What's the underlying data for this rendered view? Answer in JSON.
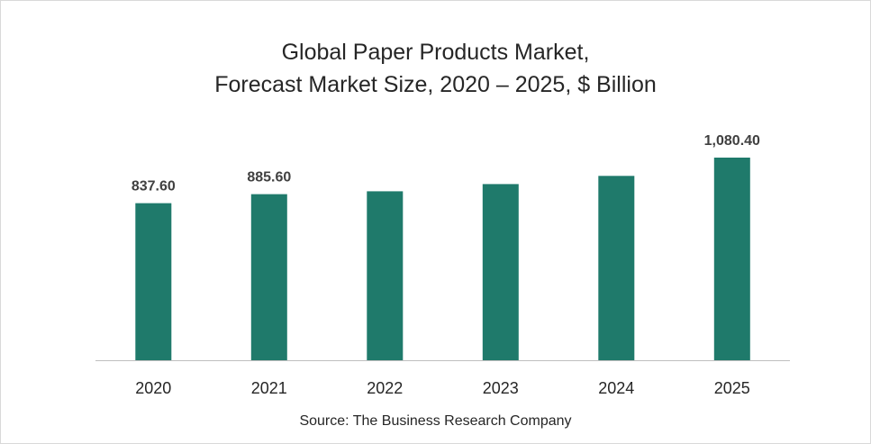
{
  "chart_data": {
    "type": "bar",
    "title_line1": "Global Paper Products Market,",
    "title_line2": "Forecast Market Size, 2020 – 2025, $ Billion",
    "categories": [
      "2020",
      "2021",
      "2022",
      "2023",
      "2024",
      "2025"
    ],
    "values": [
      837.6,
      885.6,
      901.0,
      939.0,
      983.0,
      1080.4
    ],
    "data_labels": [
      "837.60",
      "885.60",
      "",
      "",
      "",
      "1,080.40"
    ],
    "xlabel": "",
    "ylabel": "",
    "ylim": [
      0,
      1150
    ],
    "grid": false,
    "legend": "none",
    "bar_color": "#1f7a6b",
    "source": "Source: The Business Research Company"
  }
}
